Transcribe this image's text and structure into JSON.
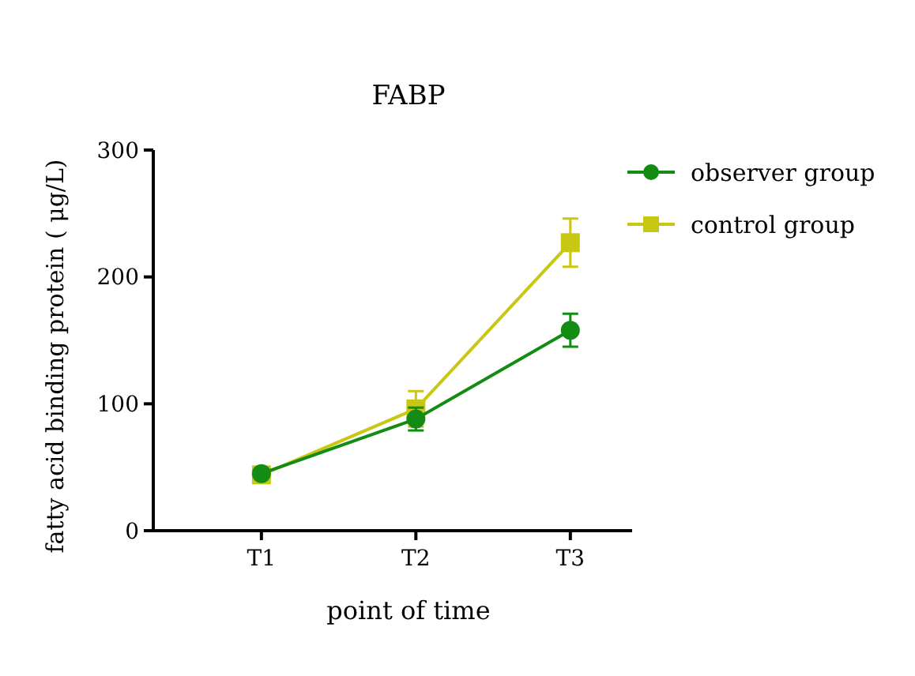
{
  "chart_data": {
    "type": "line",
    "title": "FABP",
    "xlabel": "point of time",
    "ylabel": "fatty acid binding protein ( μg/L)",
    "categories": [
      "T1",
      "T2",
      "T3"
    ],
    "series": [
      {
        "name": "observer group",
        "color": "#138c13",
        "marker": "circle",
        "values": [
          45,
          88,
          158
        ],
        "errors": [
          null,
          9,
          13
        ]
      },
      {
        "name": "control group",
        "color": "#c8c814",
        "marker": "square",
        "values": [
          44,
          96,
          227
        ],
        "errors": [
          null,
          14,
          19
        ]
      }
    ],
    "ylim": [
      0,
      300
    ],
    "yticks": [
      0,
      100,
      200,
      300
    ],
    "grid": false,
    "legend": "top right",
    "line_style": "solid"
  }
}
